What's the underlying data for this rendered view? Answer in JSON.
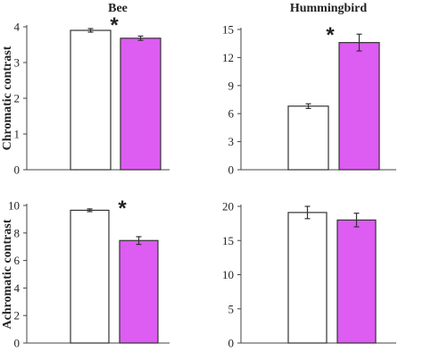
{
  "chart_data": [
    {
      "type": "bar",
      "title": "Bee",
      "ylabel": "Chromatic contrast",
      "ylim": [
        0,
        4
      ],
      "yticks": [
        "0",
        "1",
        "2",
        "3",
        "4"
      ],
      "values": [
        3.9,
        3.68
      ],
      "errors": [
        0.05,
        0.06
      ],
      "colors": [
        "#ffffff",
        "#dd5cf2"
      ],
      "significance": "*"
    },
    {
      "type": "bar",
      "title": "Hummingbird",
      "ylabel": "",
      "ylim": [
        0,
        15
      ],
      "yticks": [
        "0",
        "3",
        "6",
        "9",
        "12",
        "15"
      ],
      "values": [
        6.8,
        13.6
      ],
      "errors": [
        0.25,
        0.9
      ],
      "colors": [
        "#ffffff",
        "#dd5cf2"
      ],
      "significance": "*"
    },
    {
      "type": "bar",
      "title": "",
      "ylabel": "Achromatic contrast",
      "ylim": [
        0,
        10
      ],
      "yticks": [
        "0",
        "2",
        "4",
        "6",
        "8",
        "10"
      ],
      "values": [
        9.65,
        7.45
      ],
      "errors": [
        0.1,
        0.28
      ],
      "colors": [
        "#ffffff",
        "#dd5cf2"
      ],
      "significance": "*"
    },
    {
      "type": "bar",
      "title": "",
      "ylabel": "",
      "ylim": [
        0,
        20
      ],
      "yticks": [
        "0",
        "5",
        "10",
        "15",
        "20"
      ],
      "values": [
        19.1,
        18.0
      ],
      "errors": [
        0.9,
        1.0
      ],
      "colors": [
        "#ffffff",
        "#dd5cf2"
      ],
      "significance": ""
    }
  ]
}
